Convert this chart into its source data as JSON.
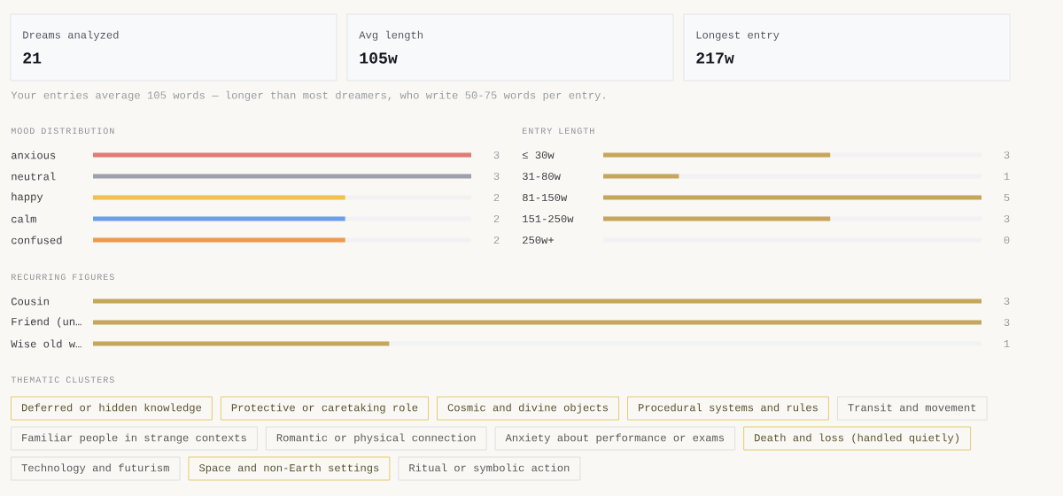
{
  "chart_data": [
    {
      "type": "other",
      "categories": [
        "Dreams analyzed",
        "Avg length",
        "Longest entry"
      ],
      "value_labels": [
        "21",
        "105w",
        "217w"
      ],
      "annotations": [
        "Your entries average 105 words — longer than most dreamers, who write 50-75 words per entry."
      ]
    },
    {
      "type": "bar",
      "orientation": "horizontal",
      "title": "MOOD DISTRIBUTION",
      "categories": [
        "anxious",
        "neutral",
        "happy",
        "calm",
        "confused"
      ],
      "values": [
        3,
        3,
        2,
        2,
        2
      ],
      "colors": [
        "#e27a76",
        "#9da1ab",
        "#f2c04c",
        "#6d9eeb",
        "#ee9a4e"
      ],
      "xlim": [
        0,
        3
      ],
      "data_labels": true,
      "tick_labels": "y"
    },
    {
      "type": "bar",
      "orientation": "horizontal",
      "title": "ENTRY LENGTH",
      "categories": [
        "≤ 30w",
        "31-80w",
        "81-150w",
        "151-250w",
        "250w+"
      ],
      "values": [
        3,
        1,
        5,
        3,
        0
      ],
      "color": "#c5a65b",
      "xlim": [
        0,
        5
      ],
      "data_labels": true,
      "tick_labels": "y"
    },
    {
      "type": "bar",
      "orientation": "horizontal",
      "title": "RECURRING FIGURES",
      "categories": [
        "Cousin",
        "Friend (un…",
        "Wise old w…"
      ],
      "values": [
        3,
        3,
        1
      ],
      "color": "#c5a65b",
      "xlim": [
        0,
        3
      ],
      "data_labels": true,
      "tick_labels": "y"
    },
    {
      "type": "other",
      "title": "THEMATIC CLUSTERS",
      "categories": [
        "Deferred or hidden knowledge",
        "Protective or caretaking role",
        "Cosmic and divine objects",
        "Procedural systems and rules",
        "Transit and movement",
        "Familiar people in strange contexts",
        "Romantic or physical connection",
        "Anxiety about performance or exams",
        "Death and loss (handled quietly)",
        "Technology and futurism",
        "Space and non-Earth settings",
        "Ritual or symbolic action"
      ],
      "colors": [
        "#e3cc72",
        "#e3cc72",
        "#e3cc72",
        "#e3cc72",
        "#dedfe2",
        "#dedfe2",
        "#dedfe2",
        "#dedfe2",
        "#e3cc72",
        "#dedfe2",
        "#e3cc72",
        "#dedfe2"
      ]
    }
  ]
}
